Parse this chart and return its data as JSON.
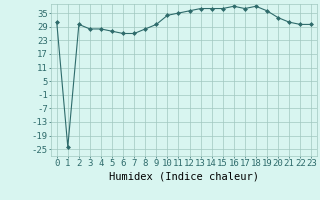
{
  "x": [
    0,
    1,
    2,
    3,
    4,
    5,
    6,
    7,
    8,
    9,
    10,
    11,
    12,
    13,
    14,
    15,
    16,
    17,
    18,
    19,
    20,
    21,
    22,
    23
  ],
  "y": [
    31,
    -24,
    30,
    28,
    28,
    27,
    26,
    26,
    28,
    30,
    34,
    35,
    36,
    37,
    37,
    37,
    38,
    37,
    38,
    36,
    33,
    31,
    30,
    30
  ],
  "xlabel": "Humidex (Indice chaleur)",
  "ylim": [
    -28,
    39
  ],
  "yticks": [
    -25,
    -19,
    -13,
    -7,
    -1,
    5,
    11,
    17,
    23,
    29,
    35
  ],
  "xticks": [
    0,
    1,
    2,
    3,
    4,
    5,
    6,
    7,
    8,
    9,
    10,
    11,
    12,
    13,
    14,
    15,
    16,
    17,
    18,
    19,
    20,
    21,
    22,
    23
  ],
  "line_color": "#2e6b6b",
  "marker_color": "#2e6b6b",
  "bg_color": "#d8f5f0",
  "grid_color": "#a0c8c0",
  "tick_label_size": 6.5,
  "xlabel_size": 7.5
}
